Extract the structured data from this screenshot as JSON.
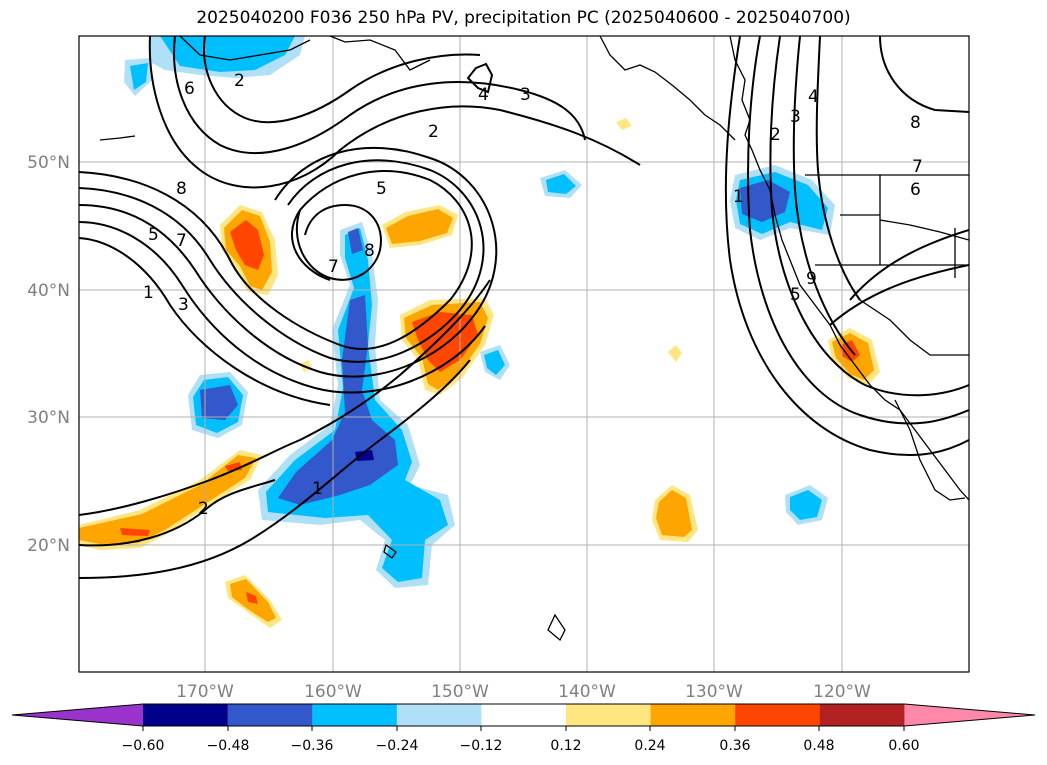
{
  "title": "2025040200 F036 250 hPa PV, precipitation PC (2025040600 - 2025040700)",
  "map": {
    "lat_labels": [
      "50°N",
      "40°N",
      "30°N",
      "20°N"
    ],
    "lon_labels": [
      "170°W",
      "160°W",
      "150°W",
      "140°W",
      "130°W",
      "120°W"
    ],
    "pv_contour_labels": [
      "6",
      "2",
      "8",
      "5",
      "7",
      "1",
      "3",
      "4",
      "3",
      "2",
      "5",
      "8",
      "7",
      "1",
      "2",
      "3",
      "4",
      "8",
      "7",
      "6",
      "9",
      "5",
      "1",
      "2"
    ]
  },
  "colorbar": {
    "ticks": [
      "−0.60",
      "−0.48",
      "−0.36",
      "−0.24",
      "−0.12",
      "0.12",
      "0.24",
      "0.36",
      "0.48",
      "0.60"
    ],
    "colors": [
      "#9933cc",
      "#00008b",
      "#3358cc",
      "#00bfff",
      "#b0e0f8",
      "#ffffff",
      "#ffe680",
      "#ffa500",
      "#ff4500",
      "#b22222",
      "#ff88aa"
    ]
  }
}
